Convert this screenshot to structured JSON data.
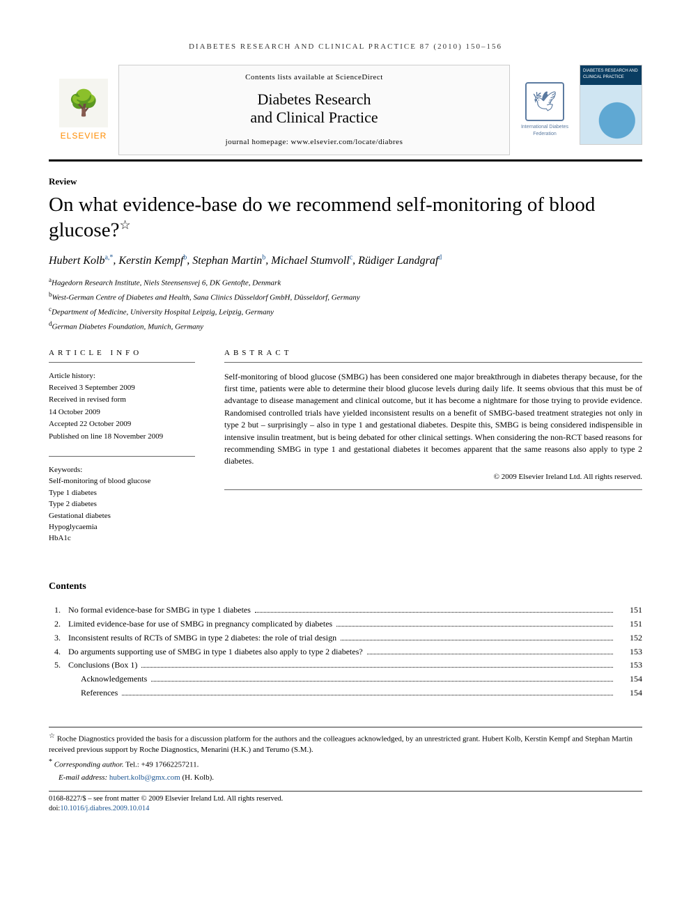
{
  "running_head": "DIABETES RESEARCH AND CLINICAL PRACTICE 87 (2010) 150–156",
  "banner": {
    "publisher_label": "ELSEVIER",
    "contents_line": "Contents lists available at ScienceDirect",
    "journal_name_line1": "Diabetes Research",
    "journal_name_line2": "and Clinical Practice",
    "homepage_line": "journal homepage: www.elsevier.com/locate/diabres",
    "federation_text": "International Diabetes Federation",
    "cover_label": "DIABETES RESEARCH AND CLINICAL PRACTICE"
  },
  "article": {
    "section": "Review",
    "title": "On what evidence-base do we recommend self-monitoring of blood glucose?",
    "title_mark": "☆",
    "authors_html": "Hubert Kolb|a,*|, Kerstin Kempf|b|, Stephan Martin|b|, Michael Stumvoll|c|, Rüdiger Landgraf|d|",
    "authors": [
      {
        "name": "Hubert Kolb",
        "sup": "a,*"
      },
      {
        "name": "Kerstin Kempf",
        "sup": "b"
      },
      {
        "name": "Stephan Martin",
        "sup": "b"
      },
      {
        "name": "Michael Stumvoll",
        "sup": "c"
      },
      {
        "name": "Rüdiger Landgraf",
        "sup": "d"
      }
    ],
    "affiliations": [
      {
        "sup": "a",
        "text": "Hagedorn Research Institute, Niels Steensensvej 6, DK Gentofte, Denmark"
      },
      {
        "sup": "b",
        "text": "West-German Centre of Diabetes and Health, Sana Clinics Düsseldorf GmbH, Düsseldorf, Germany"
      },
      {
        "sup": "c",
        "text": "Department of Medicine, University Hospital Leipzig, Leipzig, Germany"
      },
      {
        "sup": "d",
        "text": "German Diabetes Foundation, Munich, Germany"
      }
    ]
  },
  "info": {
    "head": "ARTICLE INFO",
    "history_label": "Article history:",
    "history": [
      "Received 3 September 2009",
      "Received in revised form",
      "14 October 2009",
      "Accepted 22 October 2009",
      "Published on line 18 November 2009"
    ],
    "keywords_label": "Keywords:",
    "keywords": [
      "Self-monitoring of blood glucose",
      "Type 1 diabetes",
      "Type 2 diabetes",
      "Gestational diabetes",
      "Hypoglycaemia",
      "HbA1c"
    ]
  },
  "abstract": {
    "head": "ABSTRACT",
    "text": "Self-monitoring of blood glucose (SMBG) has been considered one major breakthrough in diabetes therapy because, for the first time, patients were able to determine their blood glucose levels during daily life. It seems obvious that this must be of advantage to disease management and clinical outcome, but it has become a nightmare for those trying to provide evidence. Randomised controlled trials have yielded inconsistent results on a benefit of SMBG-based treatment strategies not only in type 2 but – surprisingly – also in type 1 and gestational diabetes. Despite this, SMBG is being considered indispensible in intensive insulin treatment, but is being debated for other clinical settings. When considering the non-RCT based reasons for recommending SMBG in type 1 and gestational diabetes it becomes apparent that the same reasons also apply to type 2 diabetes.",
    "copyright": "© 2009 Elsevier Ireland Ltd. All rights reserved."
  },
  "contents": {
    "title": "Contents",
    "items": [
      {
        "num": "1.",
        "label": "No formal evidence-base for SMBG in type 1 diabetes",
        "page": "151"
      },
      {
        "num": "2.",
        "label": "Limited evidence-base for use of SMBG in pregnancy complicated by diabetes",
        "page": "151"
      },
      {
        "num": "3.",
        "label": "Inconsistent results of RCTs of SMBG in type 2 diabetes: the role of trial design",
        "page": "152"
      },
      {
        "num": "4.",
        "label": "Do arguments supporting use of SMBG in type 1 diabetes also apply to type 2 diabetes?",
        "page": "153"
      },
      {
        "num": "5.",
        "label": "Conclusions (Box 1)",
        "page": "153"
      },
      {
        "num": "",
        "label": "Acknowledgements",
        "page": "154",
        "indent": true
      },
      {
        "num": "",
        "label": "References",
        "page": "154",
        "indent": true
      }
    ]
  },
  "footnotes": {
    "grant": "Roche Diagnostics provided the basis for a discussion platform for the authors and the colleagues acknowledged, by an unrestricted grant. Hubert Kolb, Kerstin Kempf and Stephan Martin received previous support by Roche Diagnostics, Menarini (H.K.) and Terumo (S.M.).",
    "corresponding_label": "Corresponding author.",
    "corresponding_tel": "Tel.: +49 17662257211.",
    "email_label": "E-mail address:",
    "email": "hubert.kolb@gmx.com",
    "email_who": "(H. Kolb).",
    "issn_line": "0168-8227/$ – see front matter © 2009 Elsevier Ireland Ltd. All rights reserved.",
    "doi_label": "doi:",
    "doi": "10.1016/j.diabres.2009.10.014"
  },
  "colors": {
    "link": "#1a5490",
    "elsevier_orange": "#ff8c00",
    "fed_blue": "#5b7aa0",
    "cover_blue": "#0a3d62"
  }
}
